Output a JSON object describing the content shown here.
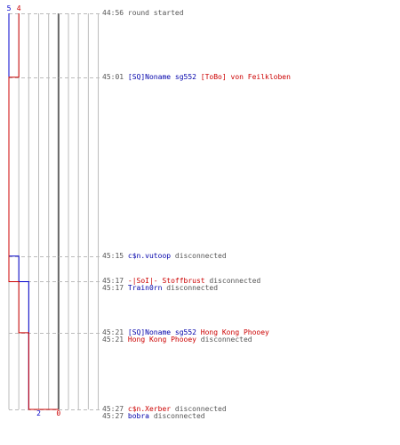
{
  "chart_data": {
    "type": "line",
    "series": [
      {
        "color": "#0000cc",
        "start_label": "5",
        "end_label": "2",
        "points": [
          {
            "time": "44:56",
            "value": 5
          },
          {
            "time": "45:15",
            "value": 4
          },
          {
            "time": "45:17",
            "value": 3
          },
          {
            "time": "45:27",
            "value": 2
          }
        ]
      },
      {
        "color": "#cc0000",
        "start_label": "4",
        "end_label": "0",
        "points": [
          {
            "time": "44:56",
            "value": 4
          },
          {
            "time": "45:01",
            "value": 5
          },
          {
            "time": "45:17",
            "value": 4
          },
          {
            "time": "45:21",
            "value": 3
          },
          {
            "time": "45:27",
            "value": 2
          },
          {
            "time": "45:27",
            "value": 0
          }
        ]
      }
    ]
  },
  "colors": {
    "team_blue": "#0000aa",
    "team_red": "#cc0000",
    "grid": "#bbbbbb",
    "axis": "#666666",
    "text": "#555555"
  },
  "events": [
    {
      "time": "44:56",
      "parts": [
        {
          "text": "round started",
          "style": "gray"
        }
      ]
    },
    {
      "time": "45:01",
      "parts": [
        {
          "text": "[SQ]Noname sg552",
          "style": "blue"
        },
        {
          "text": " [ToBo] von Feilkloben",
          "style": "red"
        }
      ]
    },
    {
      "time": "45:15",
      "parts": [
        {
          "text": "c$n.vutoop",
          "style": "blue"
        },
        {
          "text": " disconnected",
          "style": "gray"
        }
      ]
    },
    {
      "time": "45:17",
      "parts": [
        {
          "text": "-|SoI|- Stoffbrust",
          "style": "red"
        },
        {
          "text": " disconnected",
          "style": "gray"
        }
      ]
    },
    {
      "time": "45:17",
      "parts": [
        {
          "text": "Train0rn",
          "style": "blue"
        },
        {
          "text": " disconnected",
          "style": "gray"
        }
      ]
    },
    {
      "time": "45:21",
      "parts": [
        {
          "text": "[SQ]Noname sg552",
          "style": "blue"
        },
        {
          "text": " Hong Kong Phooey",
          "style": "red"
        }
      ]
    },
    {
      "time": "45:21",
      "parts": [
        {
          "text": "Hong Kong Phooey",
          "style": "red"
        },
        {
          "text": " disconnected",
          "style": "gray"
        }
      ]
    },
    {
      "time": "45:27",
      "parts": [
        {
          "text": "c$n.Xerber",
          "style": "red"
        },
        {
          "text": " disconnected",
          "style": "gray"
        }
      ]
    },
    {
      "time": "45:27",
      "parts": [
        {
          "text": "bobra",
          "style": "blue"
        },
        {
          "text": " disconnected",
          "style": "gray"
        }
      ]
    }
  ]
}
